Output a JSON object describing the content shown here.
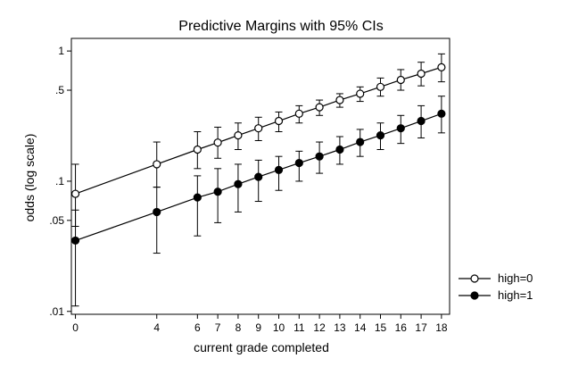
{
  "chart_data": {
    "type": "line",
    "title": "Predictive Margins with 95% CIs",
    "xlabel": "current grade completed",
    "ylabel": "odds (log scale)",
    "y_scale": "log",
    "x_ticks": [
      0,
      4,
      6,
      7,
      8,
      9,
      10,
      11,
      12,
      13,
      14,
      15,
      16,
      17,
      18
    ],
    "x_tick_labels": [
      "0",
      "4",
      "6",
      "7",
      "8",
      "9",
      "10",
      "11",
      "12",
      "13",
      "14",
      "15",
      "16",
      "17",
      "18"
    ],
    "xlim": [
      -0.2,
      18.4
    ],
    "y_ticks": [
      0.01,
      0.05,
      0.1,
      0.5,
      1
    ],
    "y_tick_labels": [
      ".01",
      ".05",
      ".1",
      ".5",
      "1"
    ],
    "ylim": [
      0.0095,
      1.25
    ],
    "grid": false,
    "legend_position": "right",
    "x": [
      0,
      4,
      6,
      7,
      8,
      9,
      10,
      11,
      12,
      13,
      14,
      15,
      16,
      17,
      18
    ],
    "series": [
      {
        "name": "high=0",
        "marker": "hollow-circle",
        "values": [
          0.08,
          0.135,
          0.175,
          0.198,
          0.225,
          0.255,
          0.29,
          0.33,
          0.37,
          0.42,
          0.47,
          0.53,
          0.6,
          0.67,
          0.75
        ],
        "ci_low": [
          0.045,
          0.09,
          0.125,
          0.15,
          0.175,
          0.205,
          0.24,
          0.28,
          0.32,
          0.37,
          0.41,
          0.45,
          0.5,
          0.54,
          0.58
        ],
        "ci_high": [
          0.135,
          0.2,
          0.24,
          0.26,
          0.28,
          0.31,
          0.34,
          0.38,
          0.42,
          0.47,
          0.53,
          0.62,
          0.72,
          0.82,
          0.95
        ]
      },
      {
        "name": "high=1",
        "marker": "filled-circle",
        "values": [
          0.035,
          0.058,
          0.075,
          0.083,
          0.095,
          0.108,
          0.122,
          0.138,
          0.155,
          0.175,
          0.2,
          0.225,
          0.255,
          0.29,
          0.33
        ],
        "ci_low": [
          0.011,
          0.028,
          0.038,
          0.048,
          0.058,
          0.07,
          0.085,
          0.1,
          0.115,
          0.135,
          0.155,
          0.175,
          0.195,
          0.215,
          0.235
        ],
        "ci_high": [
          0.06,
          0.09,
          0.11,
          0.125,
          0.135,
          0.145,
          0.155,
          0.17,
          0.2,
          0.22,
          0.25,
          0.28,
          0.32,
          0.38,
          0.45
        ]
      }
    ],
    "colors": {
      "line": "#000000",
      "background": "#ffffff"
    }
  }
}
